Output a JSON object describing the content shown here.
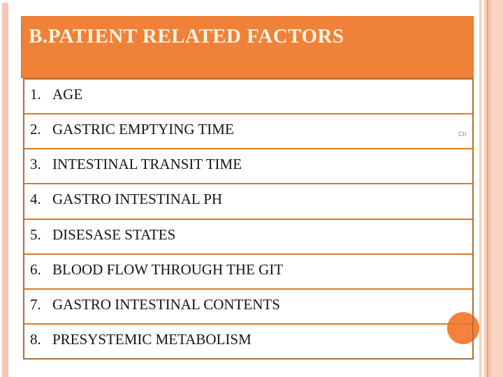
{
  "slide": {
    "title": "B.PATIENT RELATED FACTORS",
    "items": [
      {
        "num": "1.",
        "label": "AGE"
      },
      {
        "num": "2.",
        "label": "GASTRIC EMPTYING TIME"
      },
      {
        "num": "3.",
        "label": "INTESTINAL TRANSIT TIME"
      },
      {
        "num": "4.",
        "label": "GASTRO INTESTINAL PH"
      },
      {
        "num": "5.",
        "label": "DISESASE STATES"
      },
      {
        "num": "6.",
        "label": "BLOOD FLOW THROUGH THE GIT"
      },
      {
        "num": "7.",
        "label": "GASTRO INTESTINAL CONTENTS"
      },
      {
        "num": "8.",
        "label": "PRESYSTEMIC METABOLISM"
      }
    ],
    "side_note": "Ch",
    "colors": {
      "accent_orange": "#ef8138",
      "title_text": "#fbf4e2",
      "table_border": "#ac7136",
      "row_divider": "#dd7a25",
      "stripe_salmon": "#f7cdba",
      "circle_orange": "#f4823c"
    }
  }
}
